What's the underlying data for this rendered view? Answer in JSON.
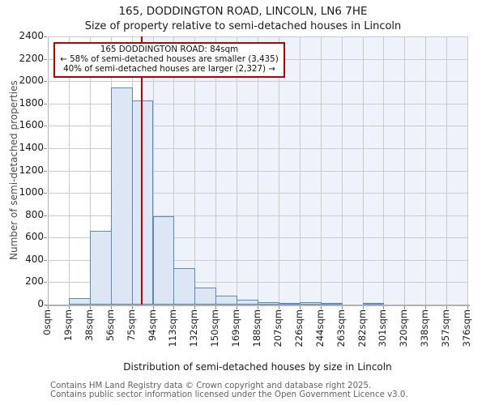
{
  "header": {
    "title": "165, DODDINGTON ROAD, LINCOLN, LN6 7HE",
    "subtitle": "Size of property relative to semi-detached houses in Lincoln"
  },
  "annotation": {
    "line1": "165 DODDINGTON ROAD: 84sqm",
    "line2": "← 58% of semi-detached houses are smaller (3,435)",
    "line3": "40% of semi-detached houses are larger (2,327) →"
  },
  "chart_data": {
    "type": "bar",
    "title": "165, DODDINGTON ROAD, LINCOLN, LN6 7HE — Size of property relative to semi-detached houses in Lincoln",
    "xlabel": "Distribution of semi-detached houses by size in Lincoln",
    "ylabel": "Number of semi-detached properties",
    "x_tick_labels": [
      "0sqm",
      "19sqm",
      "38sqm",
      "56sqm",
      "75sqm",
      "94sqm",
      "113sqm",
      "132sqm",
      "150sqm",
      "169sqm",
      "188sqm",
      "207sqm",
      "226sqm",
      "244sqm",
      "263sqm",
      "282sqm",
      "301sqm",
      "320sqm",
      "338sqm",
      "357sqm",
      "376sqm"
    ],
    "bin_starts_sqm": [
      0,
      19,
      38,
      56,
      75,
      94,
      113,
      132,
      150,
      169,
      188,
      207,
      226,
      244,
      263,
      282,
      301,
      320,
      338,
      357
    ],
    "values": [
      0,
      60,
      660,
      1940,
      1825,
      790,
      325,
      155,
      80,
      40,
      20,
      15,
      20,
      10,
      0,
      10,
      0,
      0,
      0,
      0
    ],
    "ylim": [
      0,
      2400
    ],
    "y_tick_step": 200,
    "x_max_sqm": 376,
    "marker": {
      "value_sqm": 84,
      "label": "165 DODDINGTON ROAD: 84sqm"
    },
    "grid": true,
    "legend": "none",
    "colors": {
      "bar_fill": "#dce6f4",
      "bar_border": "#5c88c5",
      "marker_line": "#bb0000",
      "shade_region": "#eef2fb",
      "gridline": "#cbcbcb"
    }
  },
  "footer": {
    "line1": "Contains HM Land Registry data © Crown copyright and database right 2025.",
    "line2": "Contains public sector information licensed under the Open Government Licence v3.0."
  }
}
